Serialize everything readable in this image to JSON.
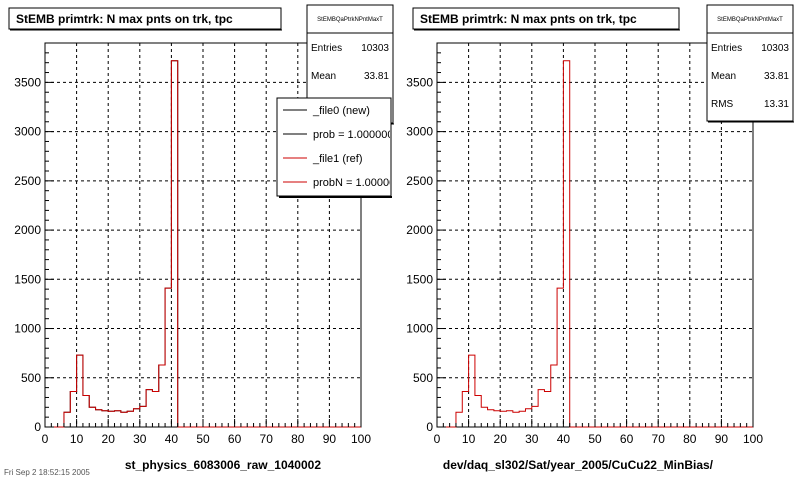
{
  "footer_text": "Fri Sep 2 18:52:15 2005",
  "chart_data": [
    {
      "type": "histogram",
      "title": "StEMB primtrk: N max pnts on trk, tpc",
      "xlabel": "st_physics_6083006_raw_1040002",
      "ylabel": "",
      "xlim": [
        0,
        100
      ],
      "ylim": [
        0,
        3900
      ],
      "x_ticks": [
        "0",
        "10",
        "20",
        "30",
        "40",
        "50",
        "60",
        "70",
        "80",
        "90",
        "100"
      ],
      "y_ticks": [
        "0",
        "500",
        "1000",
        "1500",
        "2000",
        "2500",
        "3000",
        "3500"
      ],
      "grid": true,
      "bin_width": 2,
      "bin_start": 0,
      "values": [
        0,
        0,
        0,
        150,
        360,
        730,
        320,
        200,
        175,
        165,
        160,
        165,
        150,
        160,
        185,
        210,
        380,
        360,
        630,
        1410,
        3720,
        0,
        0,
        0,
        0,
        0,
        0,
        0,
        0,
        0,
        0,
        0,
        0,
        0,
        0,
        0,
        0,
        0,
        0,
        0,
        0,
        0,
        0,
        0,
        0,
        0,
        0,
        0,
        0,
        0
      ],
      "stats": {
        "name": "StEMBQaPtrkNPntMaxT",
        "entries_label": "Entries",
        "entries": "10303",
        "mean_label": "Mean",
        "mean": "33.81"
      },
      "legend": {
        "placement": "top-right",
        "entries": [
          {
            "label": "_file0 (new)",
            "color": "#000000"
          },
          {
            "label": "prob = 1.000000",
            "color": "#000000"
          },
          {
            "label": "_file1 (ref)",
            "color": "#cc0000"
          },
          {
            "label": "probN = 1.000000",
            "color": "#cc0000"
          }
        ]
      },
      "series": [
        {
          "color": "#000000"
        },
        {
          "color": "#cc0000"
        }
      ]
    },
    {
      "type": "histogram",
      "title": "StEMB primtrk: N max pnts on trk, tpc",
      "xlabel": "dev/daq_sl302/Sat/year_2005/CuCu22_MinBias/",
      "ylabel": "",
      "xlim": [
        0,
        100
      ],
      "ylim": [
        0,
        3900
      ],
      "x_ticks": [
        "0",
        "10",
        "20",
        "30",
        "40",
        "50",
        "60",
        "70",
        "80",
        "90",
        "100"
      ],
      "y_ticks": [
        "0",
        "500",
        "1000",
        "1500",
        "2000",
        "2500",
        "3000",
        "3500"
      ],
      "grid": true,
      "bin_width": 2,
      "bin_start": 0,
      "values": [
        0,
        0,
        0,
        150,
        360,
        730,
        320,
        200,
        175,
        165,
        160,
        165,
        150,
        160,
        185,
        210,
        380,
        360,
        630,
        1410,
        3720,
        0,
        0,
        0,
        0,
        0,
        0,
        0,
        0,
        0,
        0,
        0,
        0,
        0,
        0,
        0,
        0,
        0,
        0,
        0,
        0,
        0,
        0,
        0,
        0,
        0,
        0,
        0,
        0,
        0
      ],
      "stats": {
        "name": "StEMBQaPtrkNPntMaxT",
        "entries_label": "Entries",
        "entries": "10303",
        "mean_label": "Mean",
        "mean": "33.81",
        "rms_label": "RMS",
        "rms": "13.31"
      },
      "series": [
        {
          "color": "#cc0000"
        }
      ]
    }
  ]
}
